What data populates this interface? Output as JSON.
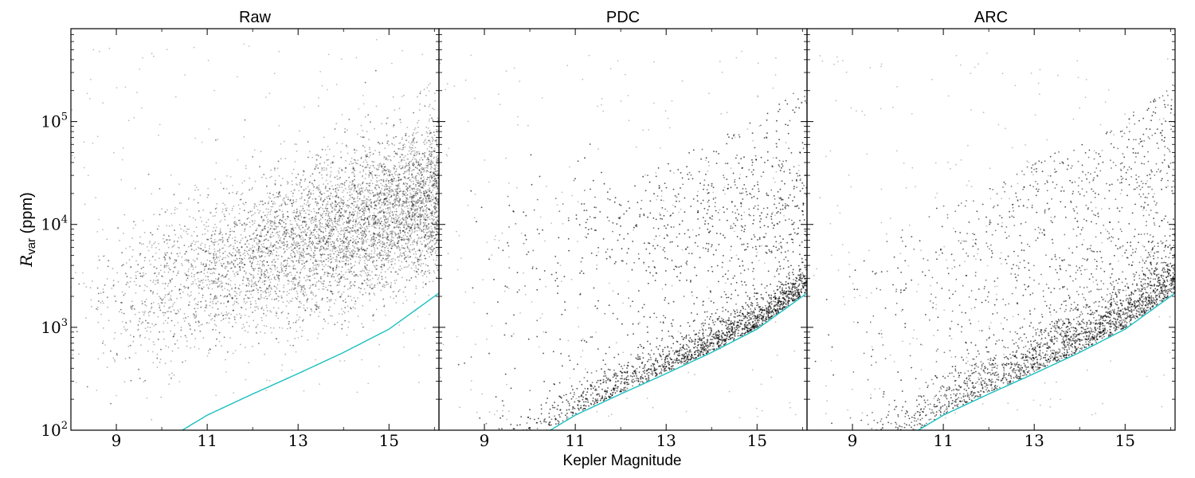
{
  "figure": {
    "xlabel": "Kepler Magnitude",
    "ylabel_symbol": "R",
    "ylabel_subscript": "var",
    "ylabel_unit": " (ppm)"
  },
  "chart_data": [
    {
      "type": "scatter",
      "title": "Raw",
      "xlim": [
        8,
        16.1
      ],
      "ylim": [
        100,
        800000
      ],
      "yscale": "log",
      "x_ticks": [
        9,
        11,
        13,
        15
      ],
      "y_ticks": [
        {
          "base": "10",
          "exp": "2",
          "value": 100
        },
        {
          "base": "10",
          "exp": "3",
          "value": 1000
        },
        {
          "base": "10",
          "exp": "4",
          "value": 10000
        },
        {
          "base": "10",
          "exp": "5",
          "value": 100000
        }
      ],
      "point_color": "#000000",
      "line_color": "#1bbfbf",
      "noise_floor_curve": {
        "x": [
          10.45,
          11,
          12,
          13,
          14,
          15,
          16.1
        ],
        "y": [
          100,
          140,
          225,
          355,
          570,
          960,
          2150
        ]
      },
      "point_distribution": {
        "dense_center": {
          "x": 15,
          "y": 25000
        },
        "edge_trend": {
          "x": [
            11,
            13,
            14,
            15,
            16
          ],
          "y": [
            3000,
            4500,
            8000,
            12000,
            20000
          ]
        }
      }
    },
    {
      "type": "scatter",
      "title": "PDC",
      "xlim": [
        8,
        16.1
      ],
      "ylim": [
        100,
        800000
      ],
      "yscale": "log",
      "x_ticks": [
        9,
        11,
        13,
        15
      ],
      "point_color": "#000000",
      "line_color": "#1bbfbf",
      "noise_floor_curve": {
        "x": [
          10.45,
          11,
          12,
          13,
          14,
          15,
          16.1
        ],
        "y": [
          100,
          140,
          225,
          355,
          570,
          960,
          2150
        ]
      },
      "point_distribution": {
        "dense_band_above_curve": true,
        "secondary_cluster": {
          "x": 15,
          "y": 13000
        }
      }
    },
    {
      "type": "scatter",
      "title": "ARC",
      "xlim": [
        8,
        16.1
      ],
      "ylim": [
        100,
        800000
      ],
      "yscale": "log",
      "x_ticks": [
        9,
        11,
        13,
        15
      ],
      "point_color": "#000000",
      "line_color": "#1bbfbf",
      "noise_floor_curve": {
        "x": [
          10.45,
          11,
          12,
          13,
          14,
          15,
          16.1
        ],
        "y": [
          100,
          140,
          225,
          355,
          570,
          960,
          2150
        ]
      },
      "point_distribution": {
        "dense_band_above_curve": true,
        "band_upper_extent": {
          "x": 15,
          "y": 12000
        }
      }
    }
  ]
}
